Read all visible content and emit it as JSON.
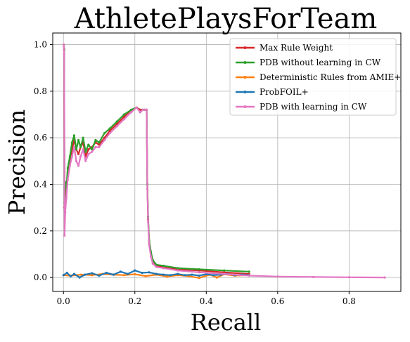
{
  "chart_data": {
    "type": "line",
    "title": "AthletePlaysForTeam",
    "xlabel": "Recall",
    "ylabel": "Precision",
    "xlim": [
      -0.03,
      0.945
    ],
    "ylim": [
      -0.06,
      1.05
    ],
    "xticks": [
      0.0,
      0.2,
      0.4,
      0.6,
      0.8
    ],
    "xtick_labels": [
      "0.0",
      "0.2",
      "0.4",
      "0.6",
      "0.8"
    ],
    "yticks": [
      0.0,
      0.2,
      0.4,
      0.6,
      0.8,
      1.0
    ],
    "ytick_labels": [
      "0.0",
      "0.2",
      "0.4",
      "0.6",
      "0.8",
      "1.0"
    ],
    "grid": true,
    "legend_position": "top-right",
    "series": [
      {
        "name": "Max Rule Weight",
        "color": "#d62728",
        "x": [
          0.001,
          0.002,
          0.003,
          0.005,
          0.008,
          0.012,
          0.018,
          0.024,
          0.03,
          0.036,
          0.042,
          0.048,
          0.055,
          0.062,
          0.07,
          0.08,
          0.09,
          0.1,
          0.115,
          0.13,
          0.15,
          0.17,
          0.19,
          0.205,
          0.215,
          0.222,
          0.228,
          0.233,
          0.235,
          0.237,
          0.24,
          0.245,
          0.25,
          0.26,
          0.28,
          0.32,
          0.38,
          0.45,
          0.52
        ],
        "y": [
          1.0,
          0.98,
          0.3,
          0.35,
          0.38,
          0.45,
          0.5,
          0.55,
          0.59,
          0.55,
          0.53,
          0.56,
          0.58,
          0.52,
          0.55,
          0.56,
          0.58,
          0.57,
          0.6,
          0.63,
          0.66,
          0.69,
          0.72,
          0.73,
          0.72,
          0.72,
          0.72,
          0.72,
          0.4,
          0.25,
          0.15,
          0.1,
          0.07,
          0.05,
          0.045,
          0.035,
          0.03,
          0.022,
          0.015
        ]
      },
      {
        "name": "PDB without learning in CW",
        "color": "#2ca02c",
        "x": [
          0.001,
          0.002,
          0.003,
          0.005,
          0.008,
          0.012,
          0.018,
          0.024,
          0.03,
          0.036,
          0.042,
          0.048,
          0.055,
          0.062,
          0.07,
          0.08,
          0.09,
          0.1,
          0.115,
          0.13,
          0.15,
          0.17,
          0.19,
          0.205,
          0.215,
          0.222,
          0.228,
          0.233,
          0.235,
          0.237,
          0.24,
          0.245,
          0.25,
          0.26,
          0.28,
          0.32,
          0.38,
          0.45,
          0.52
        ],
        "y": [
          1.0,
          0.98,
          0.32,
          0.41,
          0.38,
          0.47,
          0.52,
          0.58,
          0.61,
          0.55,
          0.59,
          0.56,
          0.6,
          0.54,
          0.57,
          0.55,
          0.59,
          0.58,
          0.62,
          0.64,
          0.67,
          0.7,
          0.72,
          0.73,
          0.71,
          0.72,
          0.72,
          0.72,
          0.4,
          0.26,
          0.16,
          0.11,
          0.075,
          0.055,
          0.05,
          0.04,
          0.035,
          0.03,
          0.025
        ]
      },
      {
        "name": "Deterministic Rules from AMIE+",
        "color": "#ff7f0e",
        "x": [
          0.0,
          0.02,
          0.05,
          0.08,
          0.11,
          0.14,
          0.17,
          0.2,
          0.23,
          0.26,
          0.29,
          0.32,
          0.35,
          0.38,
          0.41,
          0.43,
          0.45,
          0.48,
          0.52
        ],
        "y": [
          0.01,
          0.008,
          0.012,
          0.01,
          0.015,
          0.012,
          0.01,
          0.014,
          0.006,
          0.012,
          0.004,
          0.01,
          0.006,
          -0.002,
          0.012,
          0.0,
          0.014,
          0.008,
          0.01
        ]
      },
      {
        "name": "ProbFOIL+",
        "color": "#1f77b4",
        "x": [
          0.0,
          0.01,
          0.02,
          0.03,
          0.045,
          0.06,
          0.08,
          0.1,
          0.12,
          0.14,
          0.16,
          0.18,
          0.2,
          0.22,
          0.24,
          0.26,
          0.28,
          0.3,
          0.32,
          0.34,
          0.36,
          0.38,
          0.4,
          0.42,
          0.44,
          0.46,
          0.48,
          0.5,
          0.52
        ],
        "y": [
          0.01,
          0.02,
          0.005,
          0.015,
          0.0,
          0.012,
          0.018,
          0.008,
          0.02,
          0.012,
          0.025,
          0.015,
          0.03,
          0.02,
          0.022,
          0.015,
          0.012,
          0.01,
          0.015,
          0.01,
          0.012,
          0.008,
          0.014,
          0.01,
          0.012,
          0.015,
          0.01,
          0.012,
          0.01
        ]
      },
      {
        "name": "PDB with learning in CW",
        "color": "#e377c2",
        "x": [
          0.001,
          0.002,
          0.003,
          0.005,
          0.008,
          0.012,
          0.018,
          0.024,
          0.03,
          0.036,
          0.042,
          0.048,
          0.055,
          0.062,
          0.07,
          0.08,
          0.09,
          0.1,
          0.115,
          0.13,
          0.15,
          0.17,
          0.19,
          0.205,
          0.215,
          0.222,
          0.228,
          0.233,
          0.235,
          0.237,
          0.24,
          0.245,
          0.25,
          0.26,
          0.28,
          0.32,
          0.38,
          0.45,
          0.52,
          0.6,
          0.7,
          0.8,
          0.9
        ],
        "y": [
          1.0,
          0.96,
          0.18,
          0.28,
          0.34,
          0.42,
          0.48,
          0.52,
          0.56,
          0.5,
          0.48,
          0.52,
          0.55,
          0.5,
          0.53,
          0.54,
          0.56,
          0.56,
          0.59,
          0.62,
          0.65,
          0.68,
          0.71,
          0.73,
          0.71,
          0.72,
          0.72,
          0.72,
          0.38,
          0.24,
          0.14,
          0.09,
          0.06,
          0.045,
          0.04,
          0.03,
          0.022,
          0.015,
          0.008,
          0.004,
          0.002,
          0.001,
          0.0
        ]
      }
    ]
  }
}
